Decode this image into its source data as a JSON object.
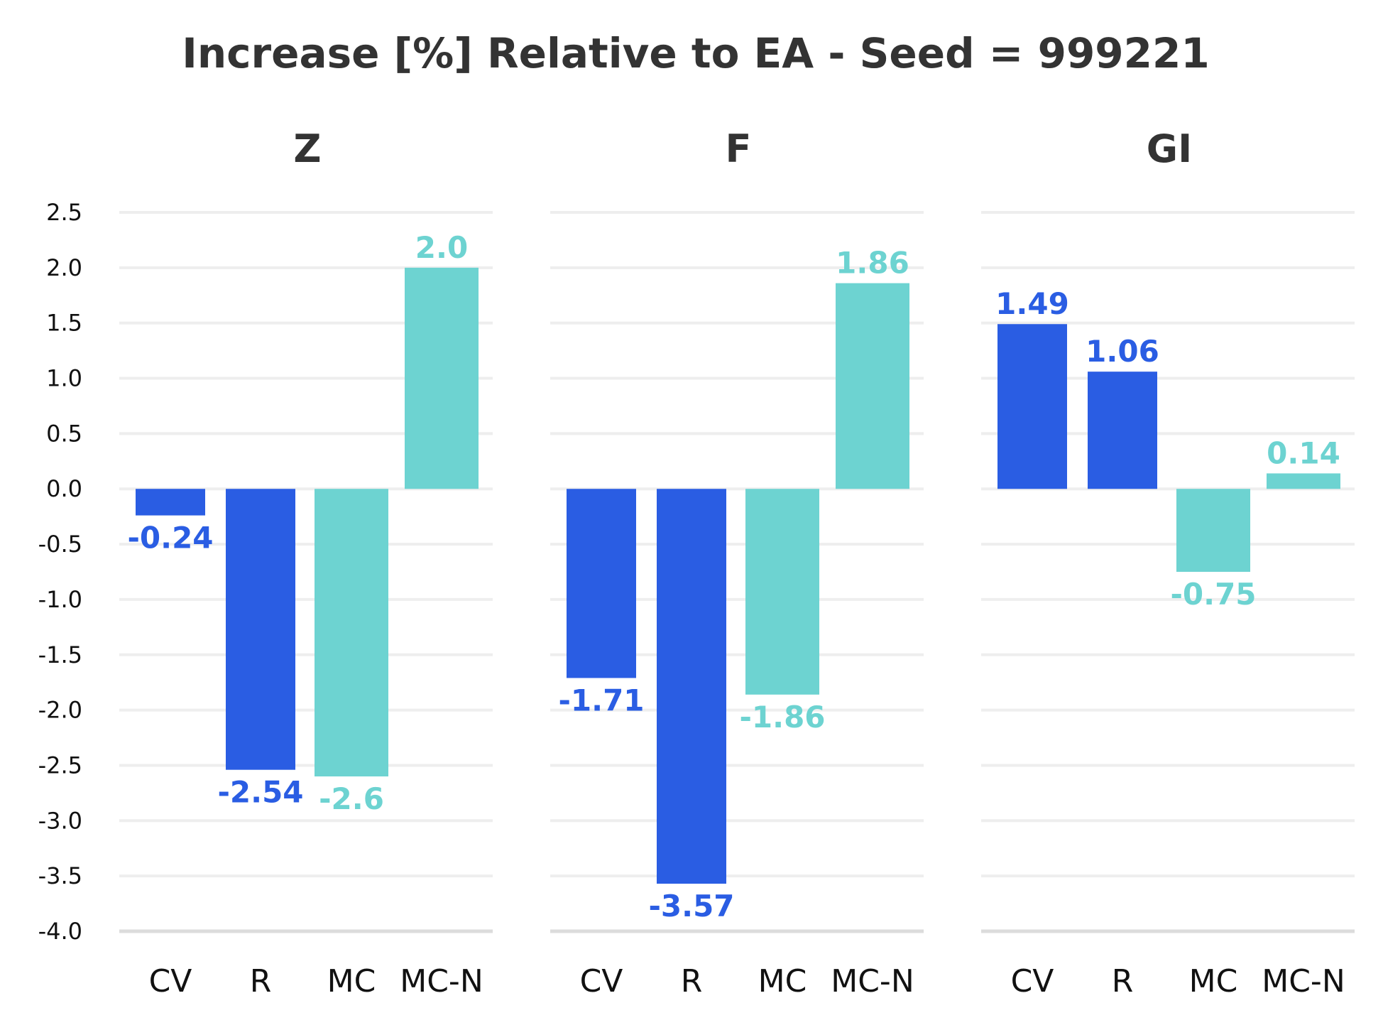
{
  "chart_data": {
    "type": "bar",
    "title": "Increase [%] Relative to EA - Seed = 999221",
    "categories": [
      "CV",
      "R",
      "MC",
      "MC-N"
    ],
    "ylim": [
      -4.0,
      2.5
    ],
    "yticks": [
      "2.5",
      "2.0",
      "1.5",
      "1.0",
      "0.5",
      "0.0",
      "-0.5",
      "-1.0",
      "-1.5",
      "-2.0",
      "-2.5",
      "-3.0",
      "-3.5",
      "-4.0"
    ],
    "ytick_values": [
      2.5,
      2.0,
      1.5,
      1.0,
      0.5,
      0.0,
      -0.5,
      -1.0,
      -1.5,
      -2.0,
      -2.5,
      -3.0,
      -3.5,
      -4.0
    ],
    "grid": true,
    "legend": "none",
    "bar_colors": [
      "#2a5de3",
      "#2a5de3",
      "#6dd3d1",
      "#6dd3d1"
    ],
    "panels": [
      {
        "title": "Z",
        "values": [
          -0.24,
          -2.54,
          -2.6,
          2.0
        ],
        "labels": [
          "-0.24",
          "-2.54",
          "-2.6",
          "2.0"
        ]
      },
      {
        "title": "F",
        "values": [
          -1.71,
          -3.57,
          -1.86,
          1.86
        ],
        "labels": [
          "-1.71",
          "-3.57",
          "-1.86",
          "1.86"
        ]
      },
      {
        "title": "GI",
        "values": [
          1.49,
          1.06,
          -0.75,
          0.14
        ],
        "labels": [
          "1.49",
          "1.06",
          "-0.75",
          "0.14"
        ]
      }
    ]
  }
}
